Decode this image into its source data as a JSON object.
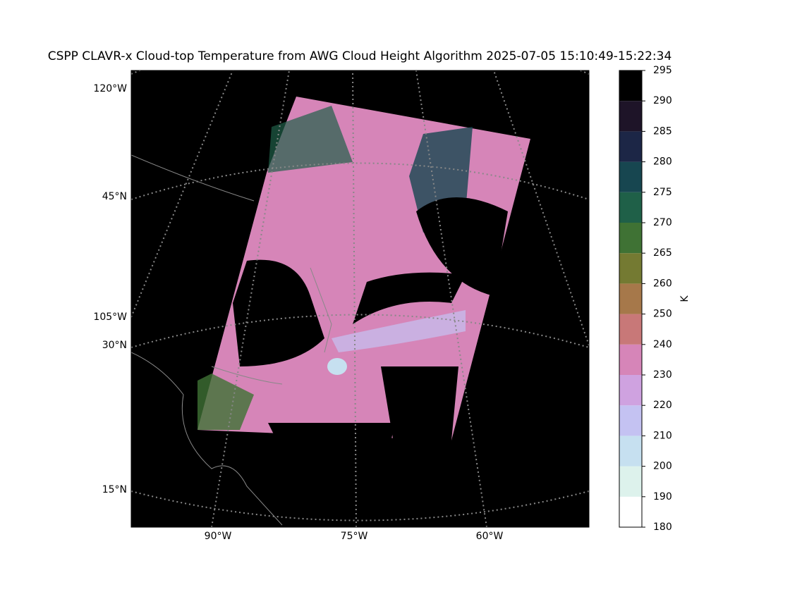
{
  "title": "CSPP CLAVR-x Cloud-top Temperature from AWG Cloud Height Algorithm 2025-07-05 15:10:49-15:22:34",
  "map": {
    "left_labels": [
      "120°W",
      "45°N",
      "105°W",
      "30°N",
      "15°N"
    ],
    "bottom_labels": [
      "90°W",
      "75°W",
      "60°W"
    ]
  },
  "colorbar": {
    "label": "K",
    "ticks": [
      180,
      190,
      200,
      210,
      220,
      230,
      240,
      250,
      260,
      265,
      270,
      275,
      280,
      285,
      290,
      295
    ],
    "colors": [
      "#ffffff",
      "#ddf2ec",
      "#c6e0f0",
      "#c4c2f2",
      "#cfa2e0",
      "#d685b8",
      "#c87878",
      "#a6784a",
      "#747a32",
      "#3f7234",
      "#1f6048",
      "#174650",
      "#1c2646",
      "#1e1428",
      "#000000"
    ]
  }
}
